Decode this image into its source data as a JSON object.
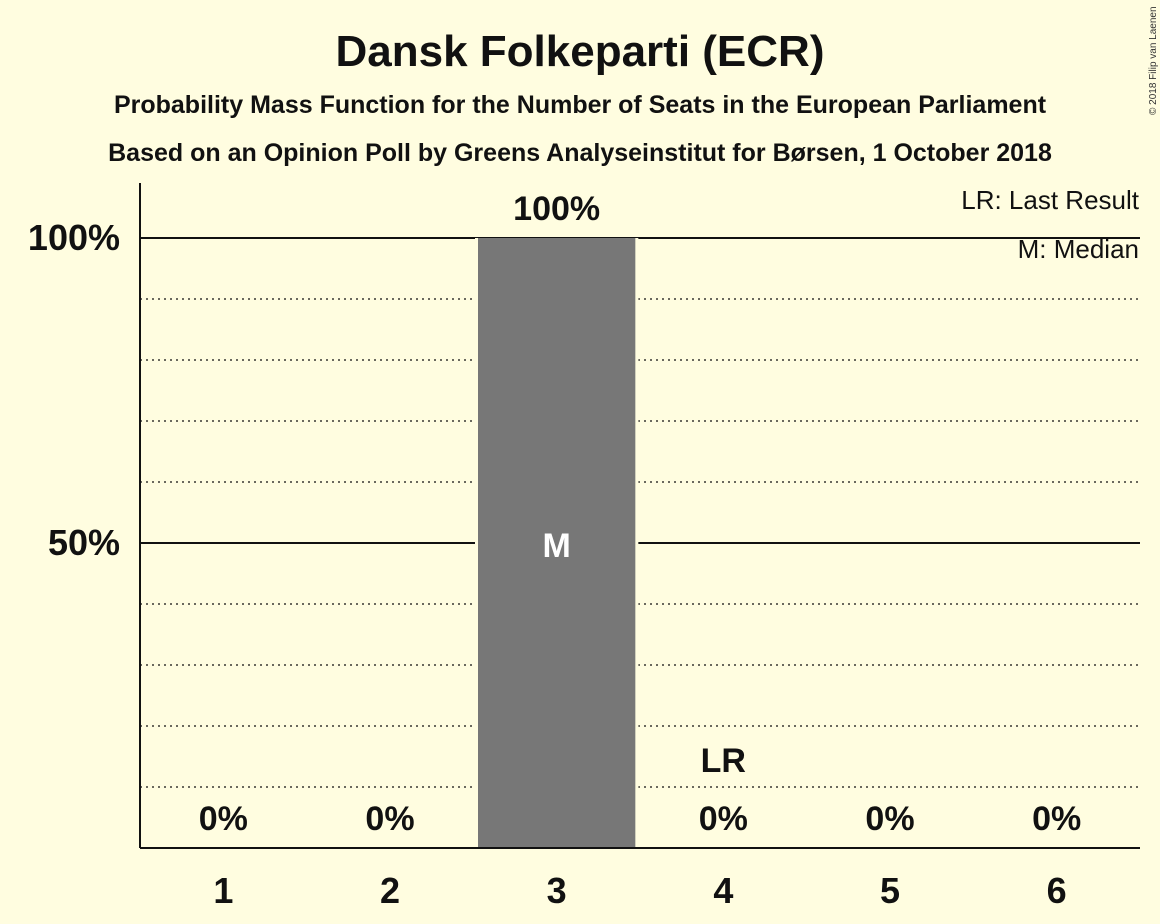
{
  "copyright": "© 2018 Filip van Laenen",
  "chart_data": {
    "type": "bar",
    "title": "Dansk Folkeparti (ECR)",
    "subtitle_1": "Probability Mass Function for the Number of Seats in the European Parliament",
    "subtitle_2": "Based on an Opinion Poll by Greens Analyseinstitut for Børsen, 1 October 2018",
    "categories": [
      "1",
      "2",
      "3",
      "4",
      "5",
      "6"
    ],
    "values": [
      0,
      0,
      100,
      0,
      0,
      0
    ],
    "value_labels": [
      "0%",
      "0%",
      "100%",
      "0%",
      "0%",
      "0%"
    ],
    "y_ticks": [
      {
        "value": 50,
        "label": "50%"
      },
      {
        "value": 100,
        "label": "100%"
      }
    ],
    "y_minor_gridlines": [
      10,
      20,
      30,
      40,
      60,
      70,
      80,
      90
    ],
    "ylim": [
      0,
      100
    ],
    "median": {
      "category": "3",
      "label": "M"
    },
    "last_result": {
      "category": "4",
      "label": "LR"
    },
    "legend": {
      "placement": "top-right",
      "items": [
        "LR: Last Result",
        "M: Median"
      ]
    },
    "bar_color": "#777777",
    "background_color": "#fffde0"
  }
}
